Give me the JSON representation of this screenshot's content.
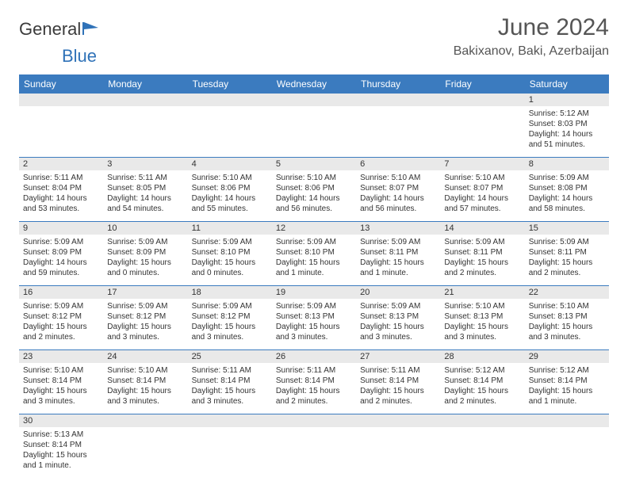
{
  "logo": {
    "text1": "General",
    "text2": "Blue"
  },
  "title": "June 2024",
  "location": "Bakixanov, Baki, Azerbaijan",
  "colors": {
    "header_bg": "#3b7bbf",
    "header_fg": "#ffffff",
    "daynum_bg": "#e9e9e9",
    "border": "#3b7bbf",
    "text": "#333333",
    "title": "#555555"
  },
  "day_names": [
    "Sunday",
    "Monday",
    "Tuesday",
    "Wednesday",
    "Thursday",
    "Friday",
    "Saturday"
  ],
  "weeks": [
    [
      null,
      null,
      null,
      null,
      null,
      null,
      {
        "n": "1",
        "sr": "Sunrise: 5:12 AM",
        "ss": "Sunset: 8:03 PM",
        "dl": "Daylight: 14 hours and 51 minutes."
      }
    ],
    [
      {
        "n": "2",
        "sr": "Sunrise: 5:11 AM",
        "ss": "Sunset: 8:04 PM",
        "dl": "Daylight: 14 hours and 53 minutes."
      },
      {
        "n": "3",
        "sr": "Sunrise: 5:11 AM",
        "ss": "Sunset: 8:05 PM",
        "dl": "Daylight: 14 hours and 54 minutes."
      },
      {
        "n": "4",
        "sr": "Sunrise: 5:10 AM",
        "ss": "Sunset: 8:06 PM",
        "dl": "Daylight: 14 hours and 55 minutes."
      },
      {
        "n": "5",
        "sr": "Sunrise: 5:10 AM",
        "ss": "Sunset: 8:06 PM",
        "dl": "Daylight: 14 hours and 56 minutes."
      },
      {
        "n": "6",
        "sr": "Sunrise: 5:10 AM",
        "ss": "Sunset: 8:07 PM",
        "dl": "Daylight: 14 hours and 56 minutes."
      },
      {
        "n": "7",
        "sr": "Sunrise: 5:10 AM",
        "ss": "Sunset: 8:07 PM",
        "dl": "Daylight: 14 hours and 57 minutes."
      },
      {
        "n": "8",
        "sr": "Sunrise: 5:09 AM",
        "ss": "Sunset: 8:08 PM",
        "dl": "Daylight: 14 hours and 58 minutes."
      }
    ],
    [
      {
        "n": "9",
        "sr": "Sunrise: 5:09 AM",
        "ss": "Sunset: 8:09 PM",
        "dl": "Daylight: 14 hours and 59 minutes."
      },
      {
        "n": "10",
        "sr": "Sunrise: 5:09 AM",
        "ss": "Sunset: 8:09 PM",
        "dl": "Daylight: 15 hours and 0 minutes."
      },
      {
        "n": "11",
        "sr": "Sunrise: 5:09 AM",
        "ss": "Sunset: 8:10 PM",
        "dl": "Daylight: 15 hours and 0 minutes."
      },
      {
        "n": "12",
        "sr": "Sunrise: 5:09 AM",
        "ss": "Sunset: 8:10 PM",
        "dl": "Daylight: 15 hours and 1 minute."
      },
      {
        "n": "13",
        "sr": "Sunrise: 5:09 AM",
        "ss": "Sunset: 8:11 PM",
        "dl": "Daylight: 15 hours and 1 minute."
      },
      {
        "n": "14",
        "sr": "Sunrise: 5:09 AM",
        "ss": "Sunset: 8:11 PM",
        "dl": "Daylight: 15 hours and 2 minutes."
      },
      {
        "n": "15",
        "sr": "Sunrise: 5:09 AM",
        "ss": "Sunset: 8:11 PM",
        "dl": "Daylight: 15 hours and 2 minutes."
      }
    ],
    [
      {
        "n": "16",
        "sr": "Sunrise: 5:09 AM",
        "ss": "Sunset: 8:12 PM",
        "dl": "Daylight: 15 hours and 2 minutes."
      },
      {
        "n": "17",
        "sr": "Sunrise: 5:09 AM",
        "ss": "Sunset: 8:12 PM",
        "dl": "Daylight: 15 hours and 3 minutes."
      },
      {
        "n": "18",
        "sr": "Sunrise: 5:09 AM",
        "ss": "Sunset: 8:12 PM",
        "dl": "Daylight: 15 hours and 3 minutes."
      },
      {
        "n": "19",
        "sr": "Sunrise: 5:09 AM",
        "ss": "Sunset: 8:13 PM",
        "dl": "Daylight: 15 hours and 3 minutes."
      },
      {
        "n": "20",
        "sr": "Sunrise: 5:09 AM",
        "ss": "Sunset: 8:13 PM",
        "dl": "Daylight: 15 hours and 3 minutes."
      },
      {
        "n": "21",
        "sr": "Sunrise: 5:10 AM",
        "ss": "Sunset: 8:13 PM",
        "dl": "Daylight: 15 hours and 3 minutes."
      },
      {
        "n": "22",
        "sr": "Sunrise: 5:10 AM",
        "ss": "Sunset: 8:13 PM",
        "dl": "Daylight: 15 hours and 3 minutes."
      }
    ],
    [
      {
        "n": "23",
        "sr": "Sunrise: 5:10 AM",
        "ss": "Sunset: 8:14 PM",
        "dl": "Daylight: 15 hours and 3 minutes."
      },
      {
        "n": "24",
        "sr": "Sunrise: 5:10 AM",
        "ss": "Sunset: 8:14 PM",
        "dl": "Daylight: 15 hours and 3 minutes."
      },
      {
        "n": "25",
        "sr": "Sunrise: 5:11 AM",
        "ss": "Sunset: 8:14 PM",
        "dl": "Daylight: 15 hours and 3 minutes."
      },
      {
        "n": "26",
        "sr": "Sunrise: 5:11 AM",
        "ss": "Sunset: 8:14 PM",
        "dl": "Daylight: 15 hours and 2 minutes."
      },
      {
        "n": "27",
        "sr": "Sunrise: 5:11 AM",
        "ss": "Sunset: 8:14 PM",
        "dl": "Daylight: 15 hours and 2 minutes."
      },
      {
        "n": "28",
        "sr": "Sunrise: 5:12 AM",
        "ss": "Sunset: 8:14 PM",
        "dl": "Daylight: 15 hours and 2 minutes."
      },
      {
        "n": "29",
        "sr": "Sunrise: 5:12 AM",
        "ss": "Sunset: 8:14 PM",
        "dl": "Daylight: 15 hours and 1 minute."
      }
    ],
    [
      {
        "n": "30",
        "sr": "Sunrise: 5:13 AM",
        "ss": "Sunset: 8:14 PM",
        "dl": "Daylight: 15 hours and 1 minute."
      },
      null,
      null,
      null,
      null,
      null,
      null
    ]
  ]
}
